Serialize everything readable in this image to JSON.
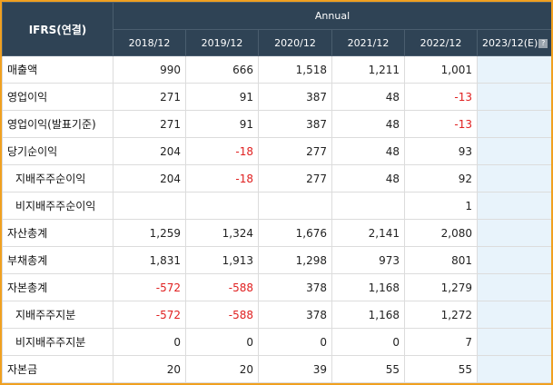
{
  "header": {
    "corner_label": "IFRS(연결)",
    "group_label": "Annual",
    "periods": [
      "2018/12",
      "2019/12",
      "2020/12",
      "2021/12",
      "2022/12",
      "2023/12(E)"
    ],
    "help_icon_glyph": "?"
  },
  "rows": [
    {
      "label": "매출액",
      "indent": false,
      "values": [
        "990",
        "666",
        "1,518",
        "1,211",
        "1,001",
        ""
      ],
      "negative": [
        false,
        false,
        false,
        false,
        false,
        false
      ]
    },
    {
      "label": "영업이익",
      "indent": false,
      "values": [
        "271",
        "91",
        "387",
        "48",
        "-13",
        ""
      ],
      "negative": [
        false,
        false,
        false,
        false,
        true,
        false
      ]
    },
    {
      "label": "영업이익(발표기준)",
      "indent": false,
      "values": [
        "271",
        "91",
        "387",
        "48",
        "-13",
        ""
      ],
      "negative": [
        false,
        false,
        false,
        false,
        true,
        false
      ]
    },
    {
      "label": "당기순이익",
      "indent": false,
      "values": [
        "204",
        "-18",
        "277",
        "48",
        "93",
        ""
      ],
      "negative": [
        false,
        true,
        false,
        false,
        false,
        false
      ]
    },
    {
      "label": "지배주주순이익",
      "indent": true,
      "values": [
        "204",
        "-18",
        "277",
        "48",
        "92",
        ""
      ],
      "negative": [
        false,
        true,
        false,
        false,
        false,
        false
      ]
    },
    {
      "label": "비지배주주순이익",
      "indent": true,
      "values": [
        "",
        "",
        "",
        "",
        "1",
        ""
      ],
      "negative": [
        false,
        false,
        false,
        false,
        false,
        false
      ]
    },
    {
      "label": "자산총계",
      "indent": false,
      "values": [
        "1,259",
        "1,324",
        "1,676",
        "2,141",
        "2,080",
        ""
      ],
      "negative": [
        false,
        false,
        false,
        false,
        false,
        false
      ]
    },
    {
      "label": "부채총계",
      "indent": false,
      "values": [
        "1,831",
        "1,913",
        "1,298",
        "973",
        "801",
        ""
      ],
      "negative": [
        false,
        false,
        false,
        false,
        false,
        false
      ]
    },
    {
      "label": "자본총계",
      "indent": false,
      "values": [
        "-572",
        "-588",
        "378",
        "1,168",
        "1,279",
        ""
      ],
      "negative": [
        true,
        true,
        false,
        false,
        false,
        false
      ]
    },
    {
      "label": "지배주주지분",
      "indent": true,
      "values": [
        "-572",
        "-588",
        "378",
        "1,168",
        "1,272",
        ""
      ],
      "negative": [
        true,
        true,
        false,
        false,
        false,
        false
      ]
    },
    {
      "label": "비지배주주지분",
      "indent": true,
      "values": [
        "0",
        "0",
        "0",
        "0",
        "7",
        ""
      ],
      "negative": [
        false,
        false,
        false,
        false,
        false,
        false
      ]
    },
    {
      "label": "자본금",
      "indent": false,
      "values": [
        "20",
        "20",
        "39",
        "55",
        "55",
        ""
      ],
      "negative": [
        false,
        false,
        false,
        false,
        false,
        false
      ]
    }
  ],
  "colors": {
    "header_bg": "#2f4355",
    "frame_border": "#f0a020",
    "negative_text": "#e02020",
    "estimate_column_bg": "#e8f3fb"
  }
}
